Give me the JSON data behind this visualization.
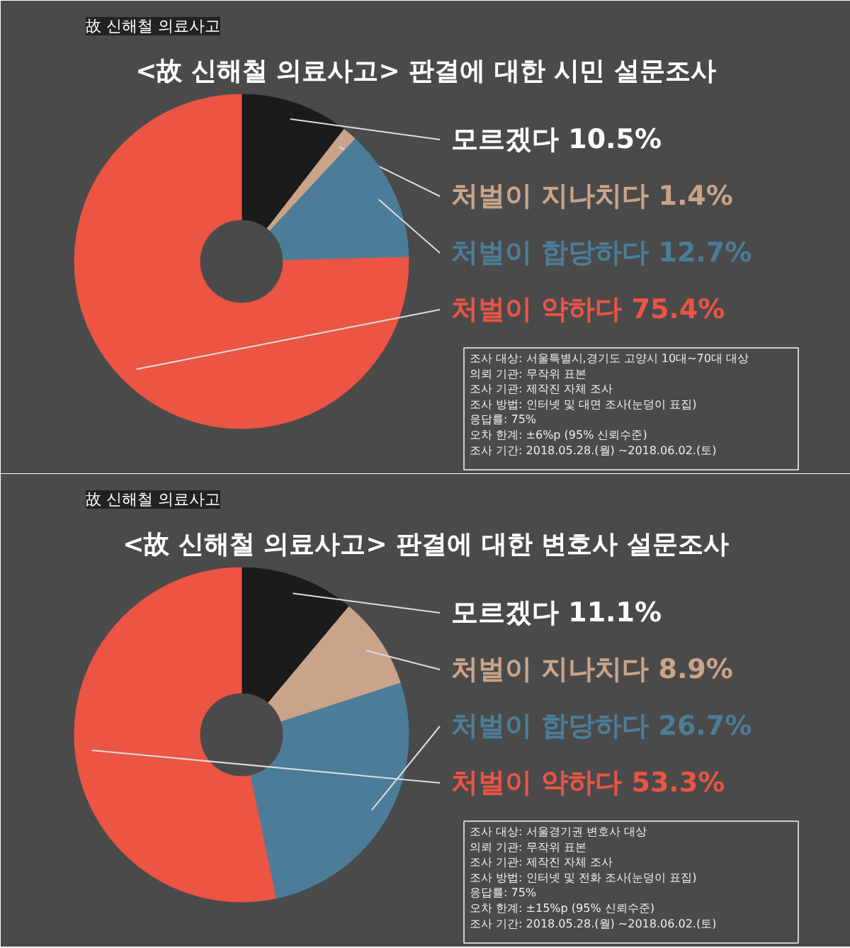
{
  "chart_data": [
    {
      "type": "donut",
      "title": "<故 신해철 의료사고> 판결에 대한 시민 설문조사",
      "categories": [
        "모르겠다 10.5%",
        "처벌이 지나치다 1.4%",
        "처벌이 합당하다 12.7%",
        "처벌이 약하다 75.4%"
      ],
      "values": [
        10.5,
        1.4,
        12.7,
        75.4
      ],
      "colors": [
        "#1b1b1b",
        "#c9a48a",
        "#4b7d99",
        "#ec5443"
      ],
      "annotations": [
        "故 신해철 의료사고",
        "조사 대상: 서울특별시,경기도 고양시 10대~70대 대상\n의뢰 기관: 무작위 표본\n조사 기관: 제작진 자체 조사\n조사 방법: 인터넷 및 대면 조사(눈덩이 표집)\n응답률: 75%\n오차 한계: ±6%p (95% 신뢰수준)\n조사 기간: 2018.05.28.(월) ~2018.06.02.(토)"
      ]
    },
    {
      "type": "donut",
      "title": "<故 신해철 의료사고> 판결에 대한 변호사 설문조사",
      "categories": [
        "모르겠다 11.1%",
        "처벌이 지나치다 8.9%",
        "처벌이 합당하다 26.7%",
        "처벌이 약하다 53.3%"
      ],
      "values": [
        11.1,
        8.9,
        26.7,
        53.3
      ],
      "colors": [
        "#1b1b1b",
        "#c9a48a",
        "#4b7d99",
        "#ec5443"
      ],
      "annotations": [
        "故 신해철 의료사고",
        "조사 대상: 서울경기권 변호사 대상\n의뢰 기관: 무작위 표본\n조사 기관: 제작진 자체 조사\n조사 방법: 인터넷 및 전화 조사(눈덩이 표집)\n응답률: 75%\n오차 한계: ±15%p (95% 신뢰수준)\n조사 기간: 2018.05.28.(월) ~2018.06.02.(토)"
      ]
    }
  ]
}
